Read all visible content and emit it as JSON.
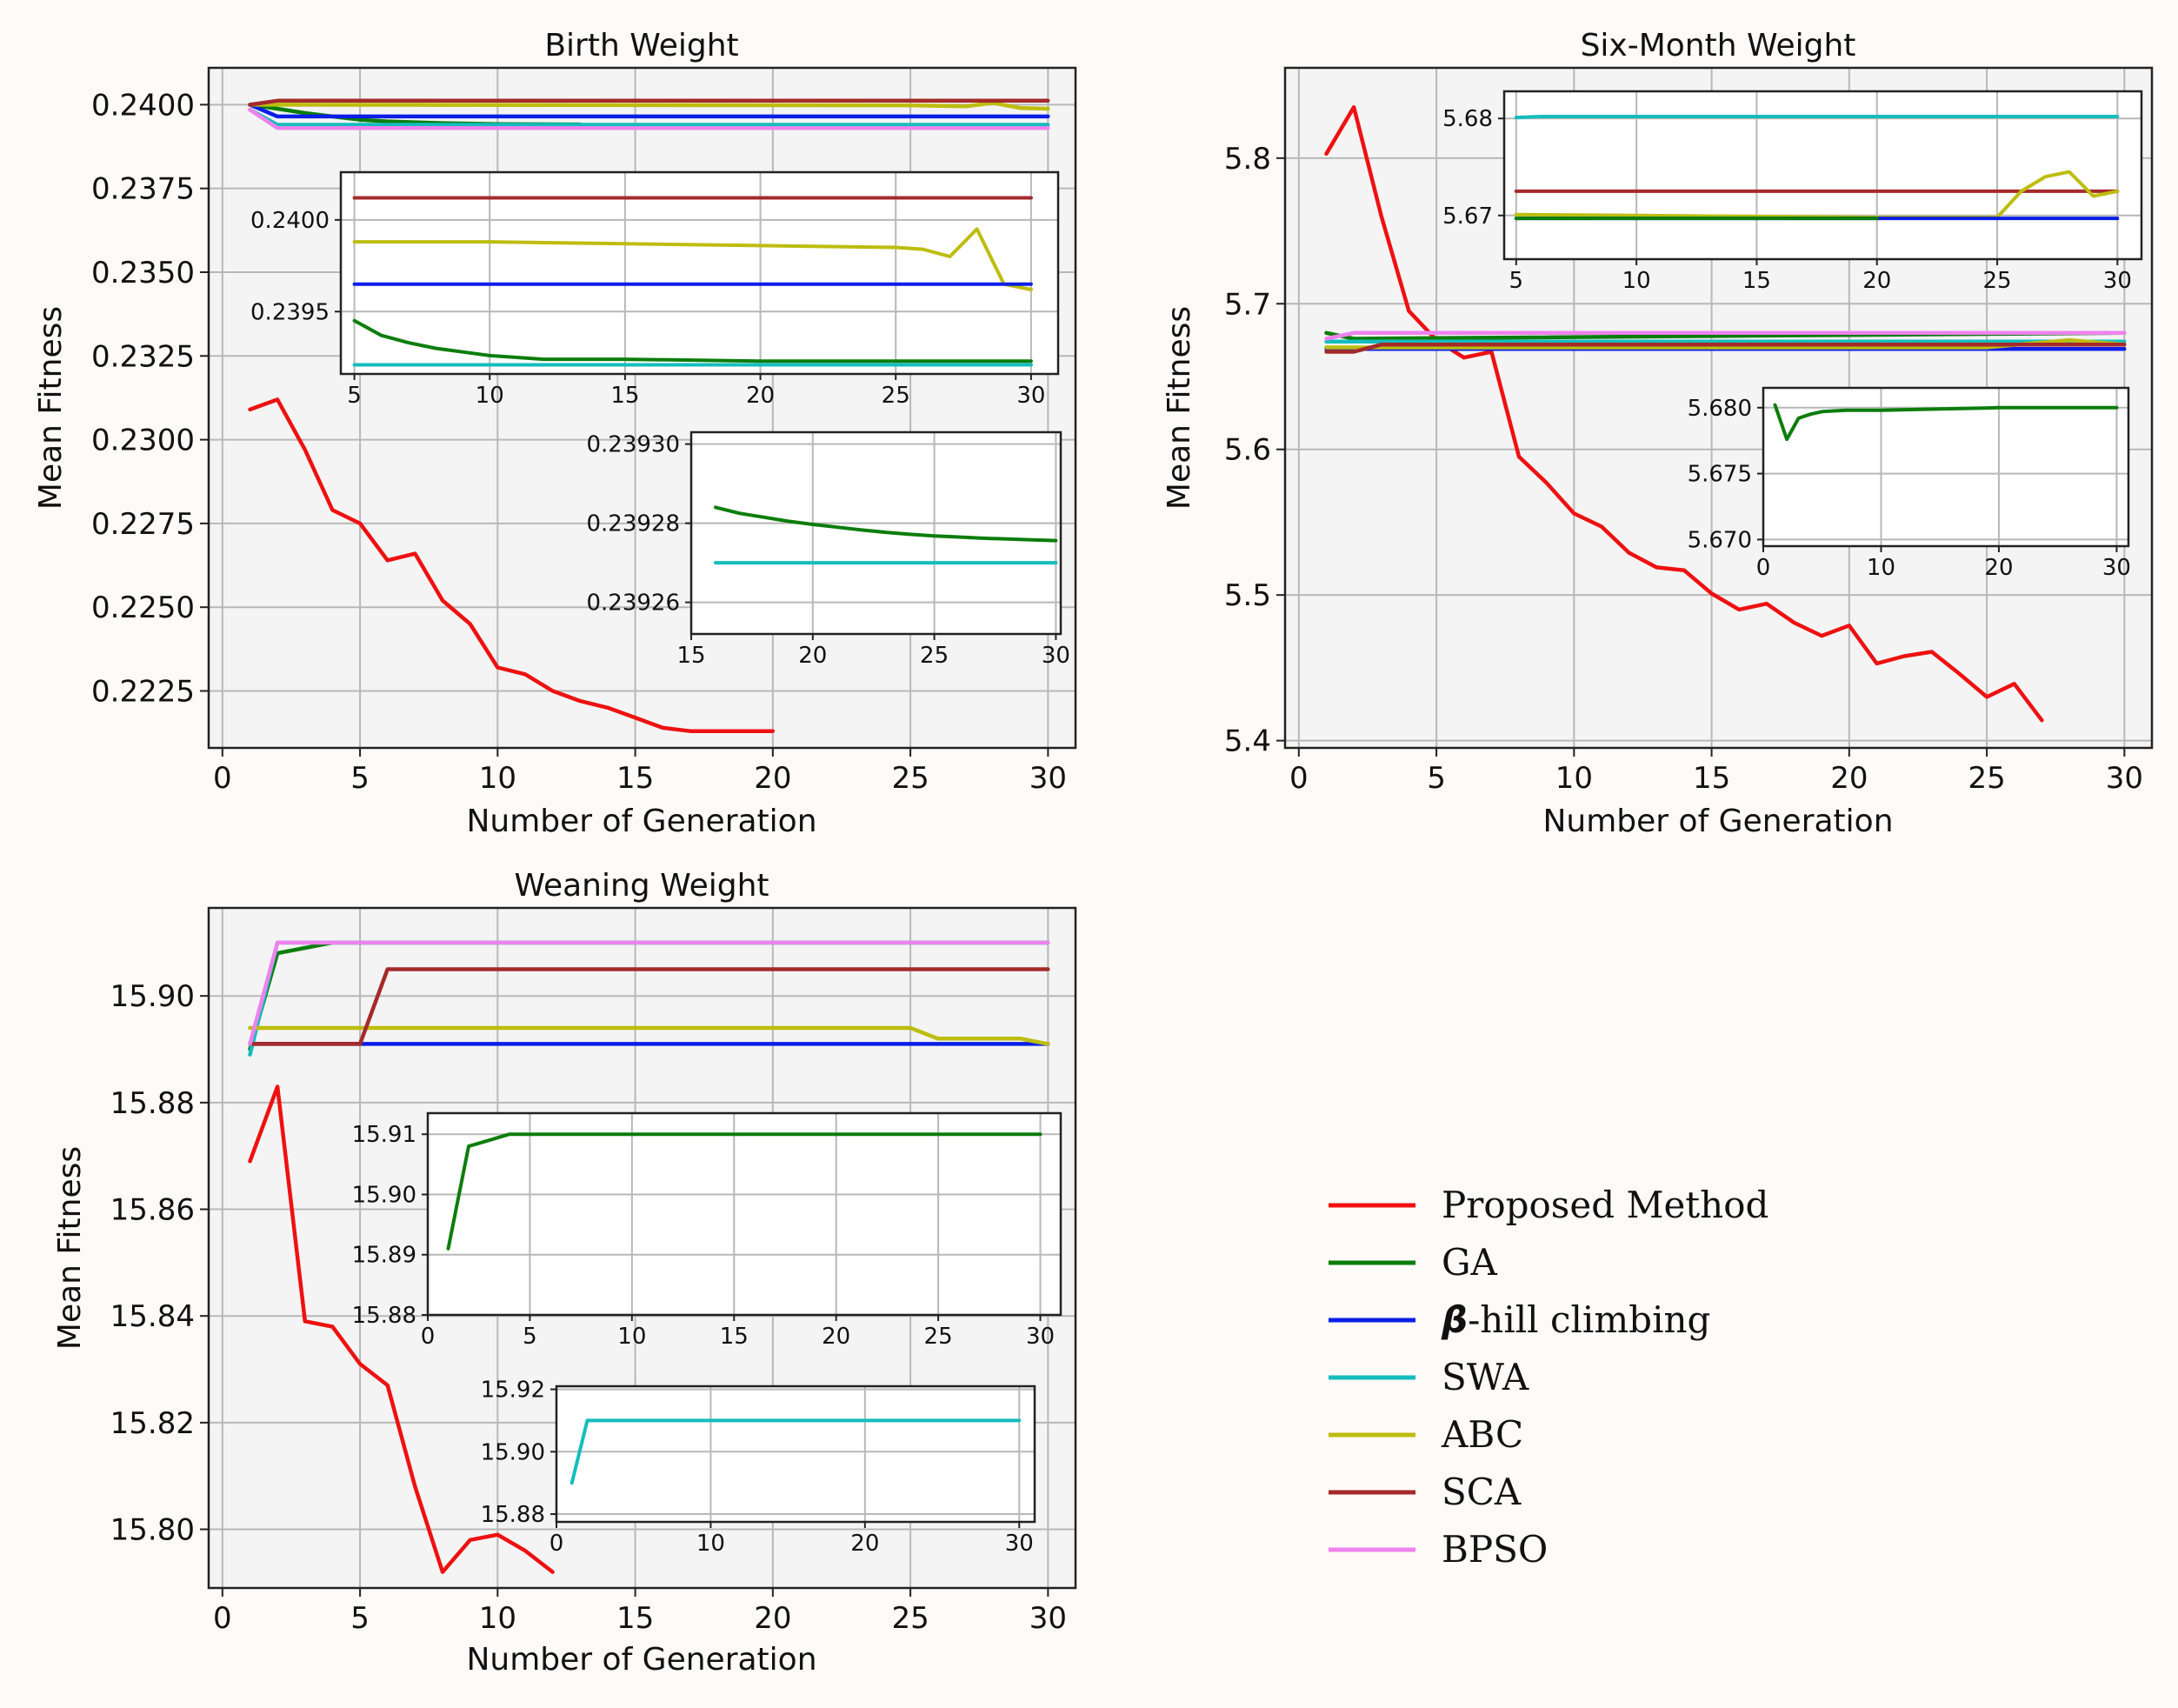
{
  "colors": {
    "Proposed Method": "#ee1111",
    "GA": "#0b7d0b",
    "beta-hill climbing": "#0a1ee6",
    "SWA": "#14bdbd",
    "ABC": "#bdbd0f",
    "SCA": "#a52a2a",
    "BPSO": "#ee82ee"
  },
  "legend": {
    "items": [
      {
        "key": "Proposed Method",
        "label": "Proposed Method"
      },
      {
        "key": "GA",
        "label": "GA"
      },
      {
        "key": "beta-hill climbing",
        "prefix": "β",
        "label": "-hill climbing"
      },
      {
        "key": "SWA",
        "label": "SWA"
      },
      {
        "key": "ABC",
        "label": "ABC"
      },
      {
        "key": "SCA",
        "label": "SCA"
      },
      {
        "key": "BPSO",
        "label": "BPSO"
      }
    ]
  },
  "chart_data": [
    {
      "id": "birth",
      "type": "line",
      "title": "Birth Weight",
      "xlabel": "Number of Generation",
      "ylabel": "Mean Fitness",
      "xlim": [
        -0.5,
        31
      ],
      "ylim": [
        0.2208,
        0.2411
      ],
      "xticks": [
        0,
        5,
        10,
        15,
        20,
        25,
        30
      ],
      "yticks": [
        0.2225,
        0.225,
        0.2275,
        0.23,
        0.2325,
        0.235,
        0.2375,
        0.24
      ],
      "ytick_labels": [
        "0.2225",
        "0.2250",
        "0.2275",
        "0.2300",
        "0.2325",
        "0.2350",
        "0.2375",
        "0.2400"
      ],
      "series": [
        {
          "key": "Proposed Method",
          "x": [
            1,
            2,
            3,
            4,
            5,
            6,
            7,
            8,
            9,
            10,
            11,
            12,
            13,
            14,
            15,
            16,
            17,
            18,
            19,
            20
          ],
          "y": [
            0.2309,
            0.2312,
            0.2297,
            0.2279,
            0.2275,
            0.2264,
            0.2266,
            0.2252,
            0.2245,
            0.2232,
            0.223,
            0.2225,
            0.2222,
            0.222,
            0.2217,
            0.2214,
            0.2213,
            0.2213,
            0.2213,
            0.2213
          ]
        },
        {
          "key": "GA",
          "x": [
            1,
            2,
            3,
            4,
            5,
            6,
            8,
            10,
            13
          ],
          "y": [
            0.24,
            0.23988,
            0.23975,
            0.23965,
            0.23955,
            0.2395,
            0.23945,
            0.23942,
            0.23941
          ]
        },
        {
          "key": "beta-hill climbing",
          "x": [
            1,
            2,
            30
          ],
          "y": [
            0.24,
            0.23965,
            0.23965
          ]
        },
        {
          "key": "SWA",
          "x": [
            1,
            2,
            30
          ],
          "y": [
            0.23985,
            0.2394,
            0.2394
          ]
        },
        {
          "key": "ABC",
          "x": [
            1,
            2,
            25,
            27,
            28,
            29,
            30
          ],
          "y": [
            0.24,
            0.24,
            0.23998,
            0.23995,
            0.24005,
            0.2399,
            0.23988
          ]
        },
        {
          "key": "SCA",
          "x": [
            1,
            2,
            30
          ],
          "y": [
            0.24,
            0.24012,
            0.24012
          ]
        },
        {
          "key": "BPSO",
          "x": [
            1,
            2,
            30
          ],
          "y": [
            0.23985,
            0.2393,
            0.2393
          ]
        }
      ],
      "insets": [
        {
          "xlim": [
            4.5,
            31
          ],
          "ylim": [
            0.23916,
            0.24026
          ],
          "xticks": [
            5,
            10,
            15,
            20,
            25,
            30
          ],
          "yticks": [
            0.2395,
            0.24
          ],
          "ytick_labels": [
            "0.2395",
            "0.2400"
          ],
          "series": [
            {
              "key": "SCA",
              "x": [
                5,
                30
              ],
              "y": [
                0.24012,
                0.24012
              ]
            },
            {
              "key": "ABC",
              "x": [
                5,
                10,
                15,
                20,
                25,
                26,
                27,
                28,
                29,
                30
              ],
              "y": [
                0.23988,
                0.23988,
                0.23987,
                0.23986,
                0.23985,
                0.23984,
                0.2398,
                0.23995,
                0.23965,
                0.23962
              ]
            },
            {
              "key": "beta-hill climbing",
              "x": [
                5,
                30
              ],
              "y": [
                0.23965,
                0.23965
              ]
            },
            {
              "key": "GA",
              "x": [
                5,
                6,
                7,
                8,
                9,
                10,
                11,
                12,
                13,
                15,
                20,
                25,
                30
              ],
              "y": [
                0.23945,
                0.23937,
                0.23933,
                0.2393,
                0.23928,
                0.23926,
                0.23925,
                0.23924,
                0.23924,
                0.23924,
                0.23923,
                0.23923,
                0.23923
              ]
            },
            {
              "key": "SWA",
              "x": [
                5,
                30
              ],
              "y": [
                0.23921,
                0.23921
              ]
            }
          ]
        },
        {
          "xlim": [
            15,
            30.2
          ],
          "ylim": [
            0.239252,
            0.239303
          ],
          "xticks": [
            15,
            20,
            25,
            30
          ],
          "yticks": [
            0.23926,
            0.23928,
            0.2393
          ],
          "ytick_labels": [
            "0.23926",
            "0.23928",
            "0.23930"
          ],
          "series": [
            {
              "key": "GA",
              "x": [
                16,
                17,
                18,
                19,
                20,
                21,
                22,
                23,
                24,
                25,
                26,
                27,
                28,
                29,
                30
              ],
              "y": [
                0.239284,
                0.2392825,
                0.2392815,
                0.2392805,
                0.2392797,
                0.239279,
                0.2392783,
                0.2392777,
                0.2392772,
                0.2392768,
                0.2392765,
                0.2392762,
                0.239276,
                0.2392758,
                0.2392756
              ]
            },
            {
              "key": "SWA",
              "x": [
                16,
                30
              ],
              "y": [
                0.23927,
                0.23927
              ]
            }
          ]
        }
      ]
    },
    {
      "id": "six",
      "type": "line",
      "title": "Six-Month Weight",
      "xlabel": "Number of Generation",
      "ylabel": "Mean Fitness",
      "xlim": [
        -0.5,
        31
      ],
      "ylim": [
        5.395,
        5.862
      ],
      "xticks": [
        0,
        5,
        10,
        15,
        20,
        25,
        30
      ],
      "yticks": [
        5.4,
        5.5,
        5.6,
        5.7,
        5.8
      ],
      "ytick_labels": [
        "5.4",
        "5.5",
        "5.6",
        "5.7",
        "5.8"
      ],
      "series": [
        {
          "key": "Proposed Method",
          "x": [
            1,
            2,
            3,
            4,
            5,
            6,
            7,
            8,
            9,
            10,
            11,
            12,
            13,
            14,
            15,
            16,
            17,
            18,
            19,
            20,
            21,
            22,
            23,
            24,
            25,
            26,
            27
          ],
          "y": [
            5.803,
            5.835,
            5.76,
            5.695,
            5.675,
            5.663,
            5.667,
            5.595,
            5.577,
            5.556,
            5.547,
            5.529,
            5.519,
            5.517,
            5.501,
            5.49,
            5.494,
            5.481,
            5.472,
            5.479,
            5.453,
            5.458,
            5.461,
            5.446,
            5.43,
            5.439,
            5.414
          ]
        },
        {
          "key": "GA",
          "x": [
            1,
            2,
            30
          ],
          "y": [
            5.68,
            5.676,
            5.68
          ]
        },
        {
          "key": "beta-hill climbing",
          "x": [
            1,
            30
          ],
          "y": [
            5.669,
            5.669
          ]
        },
        {
          "key": "SWA",
          "x": [
            1,
            30
          ],
          "y": [
            5.674,
            5.674
          ]
        },
        {
          "key": "ABC",
          "x": [
            1,
            25,
            28,
            30
          ],
          "y": [
            5.67,
            5.67,
            5.675,
            5.672
          ]
        },
        {
          "key": "SCA",
          "x": [
            1,
            2,
            3,
            30
          ],
          "y": [
            5.667,
            5.667,
            5.672,
            5.672
          ]
        },
        {
          "key": "BPSO",
          "x": [
            1,
            2,
            30
          ],
          "y": [
            5.676,
            5.68,
            5.68
          ]
        }
      ],
      "insets": [
        {
          "xlim": [
            4.5,
            31
          ],
          "ylim": [
            5.6655,
            5.6828
          ],
          "xticks": [
            5,
            10,
            15,
            20,
            25,
            30
          ],
          "yticks": [
            5.67,
            5.68
          ],
          "ytick_labels": [
            "5.67",
            "5.68"
          ],
          "series": [
            {
              "key": "SWA",
              "x": [
                5,
                6,
                30
              ],
              "y": [
                5.6801,
                5.6802,
                5.6802
              ]
            },
            {
              "key": "SCA",
              "x": [
                5,
                30
              ],
              "y": [
                5.6725,
                5.6725
              ]
            },
            {
              "key": "ABC",
              "x": [
                5,
                10,
                15,
                20,
                25,
                26,
                27,
                28,
                29,
                30
              ],
              "y": [
                5.6701,
                5.67,
                5.6699,
                5.6698,
                5.6698,
                5.6725,
                5.674,
                5.6745,
                5.672,
                5.6725
              ]
            },
            {
              "key": "beta-hill climbing",
              "x": [
                5,
                30
              ],
              "y": [
                5.6697,
                5.6697
              ]
            },
            {
              "key": "GA",
              "x": [
                5,
                20
              ],
              "y": [
                5.6697,
                5.6697
              ]
            }
          ]
        },
        {
          "xlim": [
            0,
            31
          ],
          "ylim": [
            5.6695,
            5.6815
          ],
          "xticks": [
            0,
            10,
            20,
            30
          ],
          "yticks": [
            5.67,
            5.675,
            5.68
          ],
          "ytick_labels": [
            "5.670",
            "5.675",
            "5.680"
          ],
          "series": [
            {
              "key": "GA",
              "x": [
                1,
                2,
                3,
                4,
                5,
                7,
                10,
                15,
                20,
                30
              ],
              "y": [
                5.6802,
                5.6776,
                5.6792,
                5.6795,
                5.6797,
                5.6798,
                5.6798,
                5.6799,
                5.68,
                5.68
              ]
            }
          ]
        }
      ]
    },
    {
      "id": "wean",
      "type": "line",
      "title": "Weaning Weight",
      "xlabel": "Number of Generation",
      "ylabel": "Mean Fitness",
      "xlim": [
        -0.5,
        31
      ],
      "ylim": [
        15.789,
        15.9165
      ],
      "xticks": [
        0,
        5,
        10,
        15,
        20,
        25,
        30
      ],
      "yticks": [
        15.8,
        15.82,
        15.84,
        15.86,
        15.88,
        15.9
      ],
      "ytick_labels": [
        "15.80",
        "15.82",
        "15.84",
        "15.86",
        "15.88",
        "15.90"
      ],
      "series": [
        {
          "key": "Proposed Method",
          "x": [
            1,
            2,
            3,
            4,
            5,
            6,
            7,
            8,
            9,
            10,
            11,
            12
          ],
          "y": [
            15.869,
            15.883,
            15.839,
            15.838,
            15.831,
            15.827,
            15.808,
            15.792,
            15.798,
            15.799,
            15.796,
            15.792
          ]
        },
        {
          "key": "GA",
          "x": [
            1,
            2,
            3,
            4,
            5,
            30
          ],
          "y": [
            15.89,
            15.908,
            15.909,
            15.91,
            15.91,
            15.91
          ]
        },
        {
          "key": "beta-hill climbing",
          "x": [
            1,
            30
          ],
          "y": [
            15.891,
            15.891
          ]
        },
        {
          "key": "SWA",
          "x": [
            1,
            2,
            30
          ],
          "y": [
            15.889,
            15.91,
            15.91
          ]
        },
        {
          "key": "ABC",
          "x": [
            1,
            25,
            26,
            29,
            30
          ],
          "y": [
            15.894,
            15.894,
            15.892,
            15.892,
            15.891
          ]
        },
        {
          "key": "SCA",
          "x": [
            1,
            5,
            6,
            30
          ],
          "y": [
            15.891,
            15.891,
            15.905,
            15.905
          ]
        },
        {
          "key": "BPSO",
          "x": [
            1,
            2,
            30
          ],
          "y": [
            15.891,
            15.91,
            15.91
          ]
        }
      ],
      "insets": [
        {
          "xlim": [
            0,
            31
          ],
          "ylim": [
            15.88,
            15.9135
          ],
          "xticks": [
            0,
            5,
            10,
            15,
            20,
            25,
            30
          ],
          "yticks": [
            15.88,
            15.89,
            15.9,
            15.91
          ],
          "ytick_labels": [
            "15.88",
            "15.89",
            "15.90",
            "15.91"
          ],
          "series": [
            {
              "key": "GA",
              "x": [
                1,
                2,
                3,
                4,
                5,
                30
              ],
              "y": [
                15.891,
                15.908,
                15.909,
                15.91,
                15.91,
                15.91
              ]
            }
          ]
        },
        {
          "xlim": [
            0,
            31
          ],
          "ylim": [
            15.8775,
            15.921
          ],
          "xticks": [
            0,
            10,
            20,
            30
          ],
          "yticks": [
            15.88,
            15.9,
            15.92
          ],
          "ytick_labels": [
            "15.88",
            "15.90",
            "15.92"
          ],
          "series": [
            {
              "key": "SWA",
              "x": [
                1,
                2,
                30
              ],
              "y": [
                15.89,
                15.91,
                15.91
              ]
            }
          ]
        }
      ]
    }
  ]
}
